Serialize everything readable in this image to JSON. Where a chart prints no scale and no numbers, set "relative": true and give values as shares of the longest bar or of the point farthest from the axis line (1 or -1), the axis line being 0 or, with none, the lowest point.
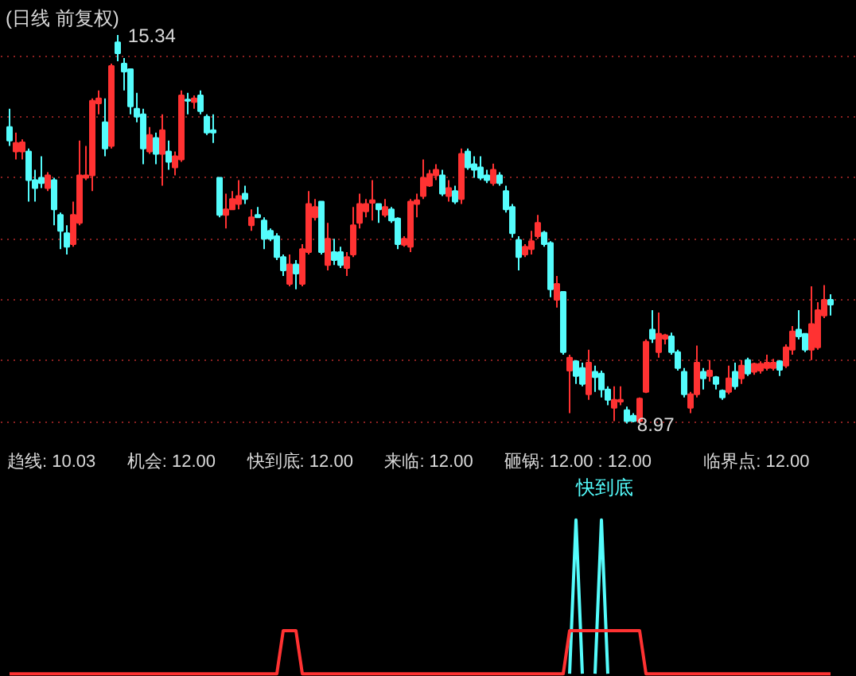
{
  "chart_data": [
    {
      "type": "candlestick",
      "title": "(日线 前复权)",
      "categories": [
        null,
        null,
        null,
        null,
        null,
        null,
        null,
        null,
        null,
        null,
        null,
        null,
        null,
        null,
        null,
        null,
        null,
        null,
        null,
        null,
        null,
        null,
        null,
        null,
        null,
        null,
        null,
        null,
        null,
        null,
        null,
        null,
        null,
        null,
        null,
        null,
        null,
        null,
        null,
        null,
        null,
        null,
        null,
        null,
        null,
        null,
        null,
        null,
        null,
        null,
        null,
        null,
        null,
        null,
        null,
        null,
        null,
        null,
        null,
        null,
        null,
        null,
        null,
        null,
        null,
        null,
        null,
        null,
        null,
        null,
        null,
        null,
        null,
        null,
        null,
        null,
        null,
        null,
        null,
        null,
        null,
        null,
        null,
        null,
        null,
        null,
        null,
        null,
        null,
        null,
        null,
        null,
        null,
        null,
        null,
        null,
        null,
        null,
        null,
        null,
        null,
        null,
        null,
        null,
        null,
        null,
        null,
        null,
        null,
        null,
        null,
        null,
        null,
        null,
        null,
        null,
        null,
        null,
        null,
        null,
        null,
        null,
        null,
        null,
        null,
        null,
        null,
        null,
        null,
        null
      ],
      "ohlc": [
        [
          13.83,
          14.13,
          13.52,
          13.61
        ],
        [
          13.43,
          13.74,
          13.3,
          13.57
        ],
        [
          13.43,
          13.63,
          13.3,
          13.58
        ],
        [
          13.43,
          13.48,
          12.61,
          12.96
        ],
        [
          12.96,
          13.13,
          12.61,
          12.83
        ],
        [
          13.0,
          13.35,
          12.83,
          12.91
        ],
        [
          12.83,
          13.09,
          12.78,
          13.04
        ],
        [
          12.96,
          13.0,
          12.22,
          12.48
        ],
        [
          12.39,
          12.43,
          11.83,
          12.13
        ],
        [
          12.09,
          12.22,
          11.74,
          11.87
        ],
        [
          11.91,
          12.61,
          11.87,
          12.39
        ],
        [
          12.26,
          13.61,
          12.22,
          13.04
        ],
        [
          13.0,
          13.52,
          12.96,
          13.04
        ],
        [
          13.04,
          14.3,
          12.78,
          14.26
        ],
        [
          14.22,
          14.43,
          14.04,
          14.3
        ],
        [
          13.91,
          14.3,
          13.35,
          13.48
        ],
        [
          13.52,
          14.87,
          13.48,
          14.83
        ],
        [
          15.22,
          15.34,
          14.91,
          15.04
        ],
        [
          14.87,
          14.96,
          14.43,
          14.74
        ],
        [
          14.78,
          14.78,
          14.04,
          14.17
        ],
        [
          14.13,
          14.39,
          13.91,
          14.0
        ],
        [
          14.04,
          14.13,
          13.22,
          13.48
        ],
        [
          13.43,
          13.83,
          13.39,
          13.7
        ],
        [
          13.65,
          13.74,
          13.22,
          13.39
        ],
        [
          13.39,
          14.04,
          12.87,
          13.78
        ],
        [
          13.43,
          13.61,
          13.13,
          13.26
        ],
        [
          13.17,
          13.43,
          13.04,
          13.35
        ],
        [
          13.3,
          14.43,
          13.26,
          14.35
        ],
        [
          14.28,
          14.39,
          14.04,
          14.26
        ],
        [
          14.24,
          14.35,
          14.13,
          14.3
        ],
        [
          14.35,
          14.43,
          14.04,
          14.09
        ],
        [
          14.0,
          14.04,
          13.7,
          13.74
        ],
        [
          13.78,
          14.04,
          13.57,
          13.74
        ],
        [
          13.0,
          13.0,
          12.35,
          12.39
        ],
        [
          12.39,
          12.74,
          12.17,
          12.48
        ],
        [
          12.48,
          12.78,
          12.48,
          12.65
        ],
        [
          12.57,
          12.96,
          12.48,
          12.7
        ],
        [
          12.74,
          12.87,
          12.57,
          12.65
        ],
        [
          12.22,
          12.48,
          12.13,
          12.35
        ],
        [
          12.39,
          12.52,
          12.35,
          12.35
        ],
        [
          12.3,
          12.35,
          11.83,
          12.0
        ],
        [
          12.13,
          12.17,
          11.96,
          12.0
        ],
        [
          12.04,
          12.09,
          11.65,
          11.7
        ],
        [
          11.7,
          11.74,
          11.39,
          11.48
        ],
        [
          11.26,
          11.74,
          11.22,
          11.58
        ],
        [
          11.58,
          11.65,
          11.17,
          11.43
        ],
        [
          11.26,
          11.91,
          11.22,
          11.83
        ],
        [
          11.78,
          12.78,
          11.74,
          12.57
        ],
        [
          12.35,
          12.65,
          12.3,
          12.52
        ],
        [
          12.61,
          12.61,
          11.74,
          11.78
        ],
        [
          11.57,
          12.26,
          11.48,
          12.0
        ],
        [
          11.78,
          12.0,
          11.57,
          11.65
        ],
        [
          11.78,
          11.87,
          11.52,
          11.57
        ],
        [
          11.52,
          11.78,
          11.39,
          11.7
        ],
        [
          11.74,
          12.52,
          11.7,
          12.22
        ],
        [
          12.26,
          12.74,
          12.17,
          12.57
        ],
        [
          12.45,
          12.65,
          12.35,
          12.57
        ],
        [
          12.59,
          12.96,
          12.3,
          12.63
        ],
        [
          12.57,
          12.57,
          12.26,
          12.48
        ],
        [
          12.39,
          12.65,
          12.35,
          12.52
        ],
        [
          12.48,
          12.52,
          12.26,
          12.3
        ],
        [
          12.33,
          12.35,
          11.83,
          11.91
        ],
        [
          11.9,
          12.04,
          11.87,
          12.0
        ],
        [
          11.87,
          12.65,
          11.78,
          12.61
        ],
        [
          12.57,
          12.74,
          12.35,
          12.63
        ],
        [
          12.7,
          13.3,
          12.65,
          13.0
        ],
        [
          12.87,
          13.13,
          12.85,
          13.06
        ],
        [
          13.04,
          13.22,
          12.96,
          13.13
        ],
        [
          13.04,
          13.13,
          12.7,
          12.74
        ],
        [
          12.7,
          12.96,
          12.61,
          12.83
        ],
        [
          12.78,
          12.87,
          12.57,
          12.61
        ],
        [
          12.65,
          13.48,
          12.57,
          13.39
        ],
        [
          13.43,
          13.48,
          13.13,
          13.17
        ],
        [
          13.22,
          13.35,
          13.0,
          13.13
        ],
        [
          13.17,
          13.35,
          12.96,
          13.0
        ],
        [
          13.04,
          13.13,
          12.91,
          12.96
        ],
        [
          12.91,
          13.23,
          12.87,
          13.13
        ],
        [
          13.04,
          13.09,
          12.87,
          12.91
        ],
        [
          12.78,
          12.87,
          12.43,
          12.48
        ],
        [
          12.52,
          12.57,
          12.02,
          12.09
        ],
        [
          11.98,
          12.04,
          11.48,
          11.7
        ],
        [
          11.74,
          11.91,
          11.7,
          11.87
        ],
        [
          11.83,
          12.13,
          11.74,
          11.96
        ],
        [
          12.04,
          12.39,
          12.0,
          12.26
        ],
        [
          12.1,
          12.13,
          11.87,
          11.91
        ],
        [
          11.93,
          11.96,
          11.04,
          11.17
        ],
        [
          11.0,
          11.39,
          10.87,
          11.26
        ],
        [
          11.13,
          11.13,
          10.1,
          10.14
        ],
        [
          9.84,
          10.1,
          9.14,
          10.05
        ],
        [
          9.99,
          10.01,
          9.62,
          9.75
        ],
        [
          9.88,
          9.97,
          9.58,
          9.62
        ],
        [
          9.45,
          10.18,
          9.36,
          9.97
        ],
        [
          9.82,
          9.92,
          9.49,
          9.73
        ],
        [
          9.79,
          9.84,
          9.4,
          9.53
        ],
        [
          9.53,
          9.58,
          9.27,
          9.36
        ],
        [
          9.23,
          9.58,
          9.01,
          9.36
        ],
        [
          9.33,
          9.58,
          9.27,
          9.36
        ],
        [
          9.19,
          9.25,
          8.97,
          9.01
        ],
        [
          9.1,
          9.14,
          8.99,
          9.01
        ],
        [
          9.01,
          9.4,
          8.99,
          9.38
        ],
        [
          9.49,
          10.35,
          9.47,
          10.31
        ],
        [
          10.51,
          10.83,
          10.29,
          10.36
        ],
        [
          10.14,
          10.79,
          10.05,
          10.44
        ],
        [
          10.36,
          10.44,
          10.27,
          10.42
        ],
        [
          10.4,
          10.46,
          10.1,
          10.14
        ],
        [
          10.14,
          10.18,
          9.84,
          9.88
        ],
        [
          9.82,
          9.88,
          9.4,
          9.45
        ],
        [
          9.23,
          9.49,
          9.14,
          9.45
        ],
        [
          9.45,
          10.25,
          9.4,
          9.97
        ],
        [
          9.82,
          9.88,
          9.53,
          9.71
        ],
        [
          9.75,
          10.01,
          9.66,
          9.84
        ],
        [
          9.73,
          9.75,
          9.53,
          9.62
        ],
        [
          9.51,
          9.53,
          9.36,
          9.4
        ],
        [
          9.49,
          9.92,
          9.45,
          9.71
        ],
        [
          9.82,
          9.97,
          9.53,
          9.58
        ],
        [
          9.71,
          10.01,
          9.62,
          9.92
        ],
        [
          10.01,
          10.05,
          9.75,
          9.79
        ],
        [
          9.82,
          9.97,
          9.77,
          9.95
        ],
        [
          9.84,
          9.99,
          9.79,
          9.95
        ],
        [
          9.88,
          10.1,
          9.84,
          9.97
        ],
        [
          9.88,
          10.03,
          9.84,
          9.97
        ],
        [
          9.99,
          10.01,
          9.75,
          9.85
        ],
        [
          9.92,
          10.27,
          9.88,
          10.22
        ],
        [
          10.18,
          10.57,
          10.1,
          10.48
        ],
        [
          10.51,
          10.83,
          10.35,
          10.4
        ],
        [
          10.44,
          10.44,
          10.14,
          10.18
        ],
        [
          10.18,
          11.22,
          10.01,
          10.6
        ],
        [
          10.22,
          10.96,
          10.18,
          10.83
        ],
        [
          10.74,
          11.24,
          10.7,
          11.0
        ],
        [
          11.0,
          11.09,
          10.74,
          10.92
        ]
      ],
      "colors": [
        "#54fcfc",
        "#ff3232",
        "#ff3232",
        "#54fcfc",
        "#54fcfc",
        "#54fcfc",
        "#ff3232",
        "#54fcfc",
        "#54fcfc",
        "#54fcfc",
        "#ff3232",
        "#ff3232",
        "#ff3232",
        "#ff3232",
        "#ff3232",
        "#54fcfc",
        "#ff3232",
        "#54fcfc",
        "#54fcfc",
        "#54fcfc",
        "#54fcfc",
        "#54fcfc",
        "#ff3232",
        "#54fcfc",
        "#ff3232",
        "#54fcfc",
        "#ff3232",
        "#ff3232",
        "#54fcfc",
        "#ff3232",
        "#54fcfc",
        "#54fcfc",
        "#54fcfc",
        "#54fcfc",
        "#ff3232",
        "#ff3232",
        "#ff3232",
        "#54fcfc",
        "#ff3232",
        "#54fcfc",
        "#54fcfc",
        "#54fcfc",
        "#54fcfc",
        "#54fcfc",
        "#ff3232",
        "#54fcfc",
        "#ff3232",
        "#ff3232",
        "#ff3232",
        "#54fcfc",
        "#ff3232",
        "#54fcfc",
        "#54fcfc",
        "#ff3232",
        "#ff3232",
        "#ff3232",
        "#ff3232",
        "#ff3232",
        "#54fcfc",
        "#ff3232",
        "#54fcfc",
        "#54fcfc",
        "#ff3232",
        "#ff3232",
        "#ff3232",
        "#ff3232",
        "#ff3232",
        "#ff3232",
        "#54fcfc",
        "#ff3232",
        "#54fcfc",
        "#ff3232",
        "#54fcfc",
        "#54fcfc",
        "#54fcfc",
        "#54fcfc",
        "#ff3232",
        "#54fcfc",
        "#54fcfc",
        "#54fcfc",
        "#54fcfc",
        "#ff3232",
        "#ff3232",
        "#ff3232",
        "#54fcfc",
        "#54fcfc",
        "#ff3232",
        "#54fcfc",
        "#ff3232",
        "#54fcfc",
        "#54fcfc",
        "#ff3232",
        "#54fcfc",
        "#54fcfc",
        "#54fcfc",
        "#ff3232",
        "#ff3232",
        "#54fcfc",
        "#54fcfc",
        "#ff3232",
        "#ff3232",
        "#54fcfc",
        "#ff3232",
        "#ff3232",
        "#54fcfc",
        "#54fcfc",
        "#54fcfc",
        "#ff3232",
        "#ff3232",
        "#54fcfc",
        "#ff3232",
        "#54fcfc",
        "#54fcfc",
        "#ff3232",
        "#54fcfc",
        "#ff3232",
        "#54fcfc",
        "#ff3232",
        "#ff3232",
        "#ff3232",
        "#ff3232",
        "#54fcfc",
        "#ff3232",
        "#ff3232",
        "#54fcfc",
        "#54fcfc",
        "#ff3232",
        "#ff3232",
        "#ff3232",
        "#54fcfc"
      ],
      "ylim": [
        8.6,
        15.9
      ],
      "yticks": [
        {
          "value": 9,
          "label": null
        },
        {
          "value": 10,
          "label": null
        },
        {
          "value": 11,
          "label": null
        },
        {
          "value": 12,
          "label": null
        },
        {
          "value": 13,
          "label": null
        },
        {
          "value": 14,
          "label": null
        },
        {
          "value": 15,
          "label": null
        }
      ],
      "grid": "y",
      "tick_labels": false,
      "annotations": [
        "15.34",
        "8.97"
      ]
    },
    {
      "type": "line",
      "relative": true,
      "tick_labels": false,
      "categories": [
        null,
        null,
        null,
        null,
        null,
        null,
        null,
        null,
        null,
        null,
        null,
        null,
        null,
        null,
        null,
        null,
        null,
        null,
        null,
        null,
        null,
        null,
        null,
        null,
        null,
        null,
        null,
        null,
        null,
        null,
        null,
        null,
        null,
        null,
        null,
        null,
        null,
        null,
        null,
        null,
        null,
        null,
        null,
        null,
        null,
        null,
        null,
        null,
        null,
        null,
        null,
        null,
        null,
        null,
        null,
        null,
        null,
        null,
        null,
        null,
        null,
        null,
        null,
        null,
        null,
        null,
        null,
        null,
        null,
        null,
        null,
        null,
        null,
        null,
        null,
        null,
        null,
        null,
        null,
        null,
        null,
        null,
        null,
        null,
        null,
        null,
        null,
        null,
        null,
        null,
        null,
        null,
        null,
        null,
        null,
        null,
        null,
        null,
        null,
        null,
        null,
        null,
        null,
        null,
        null,
        null,
        null,
        null,
        null,
        null,
        null,
        null,
        null,
        null,
        null,
        null,
        null,
        null,
        null,
        null,
        null,
        null,
        null,
        null,
        null,
        null,
        null,
        null,
        null,
        null
      ],
      "series": [
        {
          "color": "#54fcfc",
          "values": [
            null,
            null,
            null,
            null,
            null,
            null,
            null,
            null,
            null,
            null,
            null,
            null,
            null,
            null,
            null,
            null,
            null,
            null,
            null,
            null,
            null,
            null,
            null,
            null,
            null,
            null,
            null,
            null,
            null,
            null,
            null,
            null,
            null,
            null,
            null,
            null,
            null,
            null,
            null,
            null,
            null,
            null,
            null,
            null,
            null,
            null,
            null,
            null,
            null,
            null,
            null,
            null,
            null,
            null,
            null,
            null,
            null,
            null,
            null,
            null,
            null,
            null,
            null,
            null,
            null,
            null,
            null,
            null,
            null,
            null,
            null,
            null,
            null,
            null,
            null,
            null,
            null,
            null,
            null,
            null,
            null,
            null,
            null,
            null,
            null,
            null,
            null,
            null,
            0,
            1,
            0,
            null,
            0,
            1,
            0,
            null,
            null,
            null,
            null,
            null,
            null,
            null,
            null,
            null,
            null,
            null,
            null,
            null,
            null,
            null,
            null,
            null,
            null,
            null,
            null,
            null,
            null,
            null,
            null,
            null,
            null,
            null,
            null,
            null,
            null,
            null,
            null,
            null,
            null,
            null
          ]
        },
        {
          "color": "#ff3232",
          "values": [
            0,
            0,
            0,
            0,
            0,
            0,
            0,
            0,
            0,
            0,
            0,
            0,
            0,
            0,
            0,
            0,
            0,
            0,
            0,
            0,
            0,
            0,
            0,
            0,
            0,
            0,
            0,
            0,
            0,
            0,
            0,
            0,
            0,
            0,
            0,
            0,
            0,
            0,
            0,
            0,
            0,
            0,
            0,
            0.28,
            0.28,
            0.28,
            0,
            0,
            0,
            0,
            0,
            0,
            0,
            0,
            0,
            0,
            0,
            0,
            0,
            0,
            0,
            0,
            0,
            0,
            0,
            0,
            0,
            0,
            0,
            0,
            0,
            0,
            0,
            0,
            0,
            0,
            0,
            0,
            0,
            0,
            0,
            0,
            0,
            0,
            0,
            0,
            0,
            0,
            0.28,
            0.28,
            0.28,
            0.28,
            0.28,
            0.28,
            0.28,
            0.28,
            0.28,
            0.28,
            0.28,
            0.28,
            0,
            0,
            0,
            0,
            0,
            0,
            0,
            0,
            0,
            0,
            0,
            0,
            0,
            0,
            0,
            0,
            0,
            0,
            0,
            0,
            0,
            0,
            0,
            0,
            0,
            0,
            0,
            0,
            0,
            0
          ]
        }
      ],
      "annotations": [
        "趋线: 10.03",
        "机会: 12.00",
        "快到底: 12.00",
        "来临: 12.00",
        "砸锅: 12.00 : 12.00",
        "临界点: 12.00",
        "快到底"
      ]
    }
  ]
}
